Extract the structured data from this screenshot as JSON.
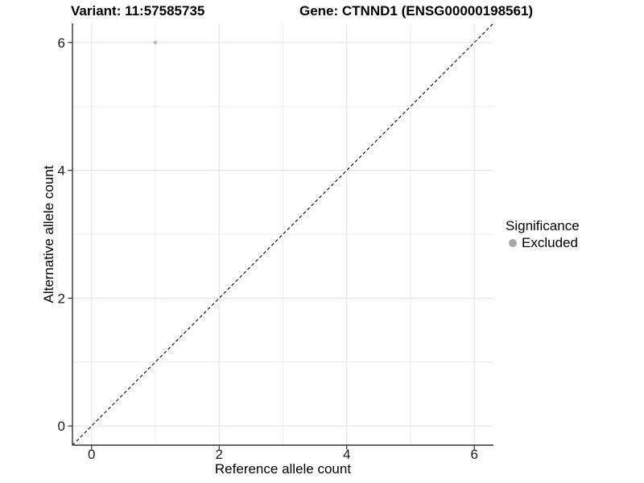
{
  "header": {
    "variant_title": "Variant: 11:57585735",
    "gene_title": "Gene: CTNND1 (ENSG00000198561)"
  },
  "legend": {
    "title": "Significance",
    "items": [
      {
        "label": "Excluded",
        "color": "#a8a8a8"
      }
    ]
  },
  "chart_data": {
    "type": "scatter",
    "title": "Variant: 11:57585735   Gene: CTNND1 (ENSG00000198561)",
    "xlabel": "Reference allele count",
    "ylabel": "Alternative allele count",
    "xlim": [
      -0.3,
      6.3
    ],
    "ylim": [
      -0.3,
      6.3
    ],
    "x_ticks": [
      0,
      2,
      4,
      6
    ],
    "y_ticks": [
      0,
      2,
      4,
      6
    ],
    "x_minor_ticks": [
      1,
      3,
      5
    ],
    "y_minor_ticks": [
      1,
      3,
      5
    ],
    "grid": true,
    "legend_position": "right",
    "series": [
      {
        "name": "Excluded",
        "color": "#bdbdbd",
        "points": [
          {
            "x": 1,
            "y": 6
          }
        ]
      }
    ],
    "reference_line": {
      "slope": 1,
      "intercept": 0,
      "style": "dashed",
      "color": "#000000"
    }
  },
  "style": {
    "major_grid_color": "#e3e3e3",
    "minor_grid_color": "#ececec",
    "axis_color": "#333333",
    "tick_label_color": "#1a1a1a",
    "background": "#ffffff"
  }
}
